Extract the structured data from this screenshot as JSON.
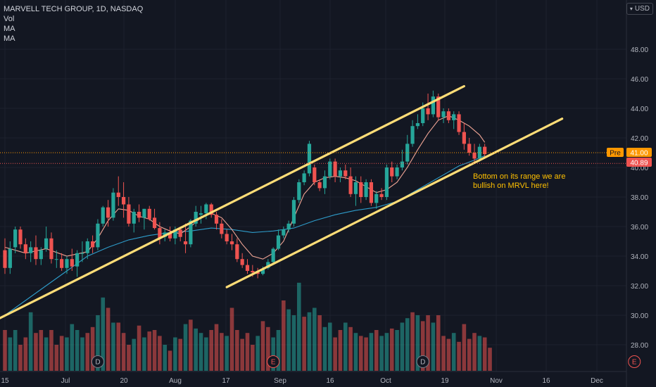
{
  "legend": {
    "symbol": "MARVELL TECH GROUP, 1D, NASDAQ",
    "vol": "Vol",
    "ma1": "MA",
    "ma2": "MA"
  },
  "currency": {
    "label": "USD",
    "icon": "chevron-down-icon"
  },
  "annotation": {
    "text": "Bottom on its range we are bullish on MRVL here!"
  },
  "price_labels": {
    "pre_tag": "Pre",
    "pre_value": "41.00",
    "last_value": "40.89"
  },
  "colors": {
    "background": "#131722",
    "up": "#26a69a",
    "down": "#ef5350",
    "channel": "#ffdd77",
    "ma_fast": "#f0a595",
    "ma_slow": "#2e9cca",
    "annotation": "#ffc000",
    "pre": "#ff9800",
    "last": "#ef5350"
  },
  "chart_data": {
    "type": "candlestick",
    "title": "MARVELL TECH GROUP, 1D, NASDAQ",
    "ylim": [
      26.0,
      52.0
    ],
    "y_ticks": [
      "28.00",
      "30.00",
      "32.00",
      "34.00",
      "36.00",
      "38.00",
      "40.00",
      "42.00",
      "44.00",
      "46.00",
      "48.00"
    ],
    "x_ticks": [
      "15",
      "Jul",
      "20",
      "Aug",
      "17",
      "Sep",
      "16",
      "Oct",
      "19",
      "Nov",
      "16",
      "Dec"
    ],
    "grid": true,
    "candles": [
      {
        "o": 34.4,
        "h": 35.2,
        "l": 32.8,
        "c": 33.2
      },
      {
        "o": 33.2,
        "h": 35.0,
        "l": 32.8,
        "c": 34.5
      },
      {
        "o": 34.6,
        "h": 36.0,
        "l": 34.2,
        "c": 35.8
      },
      {
        "o": 35.8,
        "h": 36.0,
        "l": 34.5,
        "c": 34.8
      },
      {
        "o": 34.8,
        "h": 35.2,
        "l": 33.8,
        "c": 34.2
      },
      {
        "o": 34.2,
        "h": 35.0,
        "l": 33.6,
        "c": 34.6
      },
      {
        "o": 34.6,
        "h": 35.4,
        "l": 33.4,
        "c": 33.8
      },
      {
        "o": 33.8,
        "h": 34.6,
        "l": 33.4,
        "c": 34.4
      },
      {
        "o": 34.5,
        "h": 36.0,
        "l": 34.3,
        "c": 35.2
      },
      {
        "o": 35.2,
        "h": 35.6,
        "l": 33.5,
        "c": 33.8
      },
      {
        "o": 33.8,
        "h": 34.4,
        "l": 33.2,
        "c": 33.8
      },
      {
        "o": 33.8,
        "h": 34.2,
        "l": 33.0,
        "c": 33.2
      },
      {
        "o": 33.2,
        "h": 34.0,
        "l": 32.8,
        "c": 33.8
      },
      {
        "o": 33.8,
        "h": 34.5,
        "l": 33.0,
        "c": 33.3
      },
      {
        "o": 33.3,
        "h": 34.4,
        "l": 32.6,
        "c": 34.2
      },
      {
        "o": 34.2,
        "h": 35.0,
        "l": 33.6,
        "c": 34.2
      },
      {
        "o": 34.2,
        "h": 35.2,
        "l": 33.8,
        "c": 35.0
      },
      {
        "o": 35.0,
        "h": 35.4,
        "l": 34.2,
        "c": 34.6
      },
      {
        "o": 34.6,
        "h": 36.5,
        "l": 34.4,
        "c": 36.2
      },
      {
        "o": 36.2,
        "h": 37.4,
        "l": 36.0,
        "c": 37.3
      },
      {
        "o": 37.3,
        "h": 37.8,
        "l": 36.0,
        "c": 36.6
      },
      {
        "o": 36.6,
        "h": 38.6,
        "l": 36.4,
        "c": 38.3
      },
      {
        "o": 38.3,
        "h": 39.4,
        "l": 37.4,
        "c": 38.0
      },
      {
        "o": 38.0,
        "h": 39.0,
        "l": 36.6,
        "c": 37.5
      },
      {
        "o": 37.5,
        "h": 38.0,
        "l": 36.0,
        "c": 36.2
      },
      {
        "o": 36.2,
        "h": 37.2,
        "l": 35.6,
        "c": 37.0
      },
      {
        "o": 37.0,
        "h": 37.5,
        "l": 36.3,
        "c": 36.6
      },
      {
        "o": 36.6,
        "h": 37.2,
        "l": 35.8,
        "c": 37.2
      },
      {
        "o": 37.2,
        "h": 37.4,
        "l": 36.4,
        "c": 36.5
      },
      {
        "o": 36.6,
        "h": 37.2,
        "l": 35.8,
        "c": 35.9
      },
      {
        "o": 35.9,
        "h": 36.3,
        "l": 34.8,
        "c": 35.2
      },
      {
        "o": 35.3,
        "h": 35.8,
        "l": 35.0,
        "c": 35.6
      },
      {
        "o": 35.6,
        "h": 36.0,
        "l": 35.0,
        "c": 35.2
      },
      {
        "o": 35.2,
        "h": 36.0,
        "l": 34.8,
        "c": 35.8
      },
      {
        "o": 35.8,
        "h": 36.0,
        "l": 35.0,
        "c": 35.3
      },
      {
        "o": 35.0,
        "h": 36.2,
        "l": 34.2,
        "c": 34.8
      },
      {
        "o": 34.8,
        "h": 36.5,
        "l": 34.6,
        "c": 36.4
      },
      {
        "o": 36.2,
        "h": 37.4,
        "l": 36.0,
        "c": 37.0
      },
      {
        "o": 36.8,
        "h": 37.4,
        "l": 36.2,
        "c": 36.9
      },
      {
        "o": 36.9,
        "h": 37.6,
        "l": 36.5,
        "c": 37.5
      },
      {
        "o": 37.5,
        "h": 37.6,
        "l": 36.6,
        "c": 36.8
      },
      {
        "o": 36.8,
        "h": 37.0,
        "l": 35.8,
        "c": 36.2
      },
      {
        "o": 36.2,
        "h": 36.5,
        "l": 35.2,
        "c": 35.5
      },
      {
        "o": 35.5,
        "h": 35.8,
        "l": 34.8,
        "c": 35.0
      },
      {
        "o": 35.0,
        "h": 35.5,
        "l": 34.4,
        "c": 34.8
      },
      {
        "o": 34.8,
        "h": 35.2,
        "l": 33.6,
        "c": 33.8
      },
      {
        "o": 33.8,
        "h": 34.2,
        "l": 33.2,
        "c": 33.4
      },
      {
        "o": 33.4,
        "h": 33.8,
        "l": 32.8,
        "c": 33.0
      },
      {
        "o": 33.0,
        "h": 33.4,
        "l": 32.6,
        "c": 32.9
      },
      {
        "o": 32.9,
        "h": 33.2,
        "l": 32.5,
        "c": 32.8
      },
      {
        "o": 32.8,
        "h": 33.3,
        "l": 32.7,
        "c": 33.1
      },
      {
        "o": 33.2,
        "h": 33.8,
        "l": 33.1,
        "c": 33.6
      },
      {
        "o": 33.6,
        "h": 34.6,
        "l": 33.5,
        "c": 34.5
      },
      {
        "o": 34.5,
        "h": 35.8,
        "l": 34.4,
        "c": 35.4
      },
      {
        "o": 35.4,
        "h": 36.0,
        "l": 35.2,
        "c": 35.8
      },
      {
        "o": 35.8,
        "h": 36.4,
        "l": 35.6,
        "c": 36.2
      },
      {
        "o": 36.2,
        "h": 38.0,
        "l": 36.0,
        "c": 37.8
      },
      {
        "o": 37.8,
        "h": 39.2,
        "l": 37.6,
        "c": 39.0
      },
      {
        "o": 39.0,
        "h": 39.8,
        "l": 38.8,
        "c": 39.6
      },
      {
        "o": 39.6,
        "h": 41.8,
        "l": 39.4,
        "c": 41.6
      },
      {
        "o": 40.0,
        "h": 40.2,
        "l": 38.8,
        "c": 39.0
      },
      {
        "o": 39.0,
        "h": 39.2,
        "l": 38.4,
        "c": 38.6
      },
      {
        "o": 38.6,
        "h": 39.8,
        "l": 38.2,
        "c": 39.4
      },
      {
        "o": 39.4,
        "h": 40.6,
        "l": 39.2,
        "c": 40.4
      },
      {
        "o": 40.4,
        "h": 40.6,
        "l": 39.0,
        "c": 39.4
      },
      {
        "o": 39.4,
        "h": 40.0,
        "l": 39.0,
        "c": 39.8
      },
      {
        "o": 39.8,
        "h": 40.2,
        "l": 39.2,
        "c": 39.4
      },
      {
        "o": 39.4,
        "h": 40.0,
        "l": 38.0,
        "c": 38.2
      },
      {
        "o": 38.2,
        "h": 39.4,
        "l": 37.4,
        "c": 39.0
      },
      {
        "o": 39.0,
        "h": 39.4,
        "l": 37.6,
        "c": 38.0
      },
      {
        "o": 38.0,
        "h": 39.2,
        "l": 37.8,
        "c": 39.0
      },
      {
        "o": 39.0,
        "h": 39.2,
        "l": 37.4,
        "c": 37.6
      },
      {
        "o": 37.6,
        "h": 38.4,
        "l": 37.2,
        "c": 38.2
      },
      {
        "o": 38.2,
        "h": 38.6,
        "l": 37.8,
        "c": 38.0
      },
      {
        "o": 38.0,
        "h": 40.2,
        "l": 37.8,
        "c": 40.0
      },
      {
        "o": 40.0,
        "h": 40.4,
        "l": 39.0,
        "c": 39.4
      },
      {
        "o": 39.4,
        "h": 40.2,
        "l": 39.2,
        "c": 40.0
      },
      {
        "o": 40.0,
        "h": 41.2,
        "l": 39.8,
        "c": 40.4
      },
      {
        "o": 40.4,
        "h": 42.2,
        "l": 40.2,
        "c": 41.6
      },
      {
        "o": 41.6,
        "h": 43.2,
        "l": 41.4,
        "c": 42.8
      },
      {
        "o": 42.8,
        "h": 43.6,
        "l": 42.6,
        "c": 43.0
      },
      {
        "o": 43.0,
        "h": 44.4,
        "l": 42.8,
        "c": 44.0
      },
      {
        "o": 44.0,
        "h": 45.0,
        "l": 43.2,
        "c": 43.6
      },
      {
        "o": 43.6,
        "h": 45.2,
        "l": 43.4,
        "c": 44.8
      },
      {
        "o": 44.8,
        "h": 45.0,
        "l": 43.2,
        "c": 43.4
      },
      {
        "o": 43.4,
        "h": 44.0,
        "l": 43.0,
        "c": 43.8
      },
      {
        "o": 43.8,
        "h": 44.0,
        "l": 43.0,
        "c": 43.2
      },
      {
        "o": 43.2,
        "h": 43.8,
        "l": 42.6,
        "c": 43.6
      },
      {
        "o": 43.6,
        "h": 43.8,
        "l": 42.2,
        "c": 42.4
      },
      {
        "o": 42.4,
        "h": 43.0,
        "l": 41.2,
        "c": 41.6
      },
      {
        "o": 41.6,
        "h": 42.0,
        "l": 40.8,
        "c": 41.0
      },
      {
        "o": 41.0,
        "h": 41.6,
        "l": 40.4,
        "c": 40.6
      },
      {
        "o": 40.6,
        "h": 41.6,
        "l": 40.4,
        "c": 41.4
      },
      {
        "o": 41.4,
        "h": 41.6,
        "l": 40.6,
        "c": 40.9
      }
    ],
    "volume": [
      {
        "v": 29.0,
        "up": false
      },
      {
        "v": 28.5,
        "up": true
      },
      {
        "v": 29.0,
        "up": true
      },
      {
        "v": 28.0,
        "up": false
      },
      {
        "v": 28.5,
        "up": false
      },
      {
        "v": 30.2,
        "up": true
      },
      {
        "v": 28.8,
        "up": false
      },
      {
        "v": 29.0,
        "up": false
      },
      {
        "v": 28.5,
        "up": true
      },
      {
        "v": 29.0,
        "up": false
      },
      {
        "v": 28.0,
        "up": false
      },
      {
        "v": 28.6,
        "up": false
      },
      {
        "v": 28.5,
        "up": true
      },
      {
        "v": 29.4,
        "up": true
      },
      {
        "v": 29.0,
        "up": true
      },
      {
        "v": 28.5,
        "up": true
      },
      {
        "v": 28.8,
        "up": false
      },
      {
        "v": 29.2,
        "up": false
      },
      {
        "v": 30.0,
        "up": true
      },
      {
        "v": 31.2,
        "up": true
      },
      {
        "v": 30.5,
        "up": false
      },
      {
        "v": 29.5,
        "up": true
      },
      {
        "v": 29.5,
        "up": false
      },
      {
        "v": 28.8,
        "up": false
      },
      {
        "v": 28.0,
        "up": false
      },
      {
        "v": 28.4,
        "up": true
      },
      {
        "v": 29.3,
        "up": false
      },
      {
        "v": 28.5,
        "up": true
      },
      {
        "v": 28.9,
        "up": false
      },
      {
        "v": 29.0,
        "up": false
      },
      {
        "v": 28.6,
        "up": false
      },
      {
        "v": 28.0,
        "up": true
      },
      {
        "v": 27.6,
        "up": false
      },
      {
        "v": 28.5,
        "up": true
      },
      {
        "v": 28.4,
        "up": false
      },
      {
        "v": 29.4,
        "up": true
      },
      {
        "v": 29.7,
        "up": false
      },
      {
        "v": 29.1,
        "up": true
      },
      {
        "v": 28.8,
        "up": true
      },
      {
        "v": 28.5,
        "up": true
      },
      {
        "v": 29.0,
        "up": false
      },
      {
        "v": 29.4,
        "up": false
      },
      {
        "v": 28.8,
        "up": false
      },
      {
        "v": 28.6,
        "up": true
      },
      {
        "v": 30.5,
        "up": false
      },
      {
        "v": 29.0,
        "up": false
      },
      {
        "v": 28.4,
        "up": false
      },
      {
        "v": 28.8,
        "up": false
      },
      {
        "v": 28.0,
        "up": false
      },
      {
        "v": 28.6,
        "up": true
      },
      {
        "v": 29.6,
        "up": false
      },
      {
        "v": 29.2,
        "up": false
      },
      {
        "v": 28.5,
        "up": true
      },
      {
        "v": 29.0,
        "up": true
      },
      {
        "v": 31.0,
        "up": false
      },
      {
        "v": 30.4,
        "up": true
      },
      {
        "v": 30.0,
        "up": true
      },
      {
        "v": 32.2,
        "up": true
      },
      {
        "v": 29.9,
        "up": false
      },
      {
        "v": 30.2,
        "up": true
      },
      {
        "v": 30.5,
        "up": true
      },
      {
        "v": 30.0,
        "up": false
      },
      {
        "v": 29.2,
        "up": true
      },
      {
        "v": 29.5,
        "up": true
      },
      {
        "v": 28.5,
        "up": false
      },
      {
        "v": 29.0,
        "up": false
      },
      {
        "v": 29.5,
        "up": true
      },
      {
        "v": 29.2,
        "up": false
      },
      {
        "v": 28.8,
        "up": true
      },
      {
        "v": 28.6,
        "up": false
      },
      {
        "v": 28.5,
        "up": false
      },
      {
        "v": 28.8,
        "up": true
      },
      {
        "v": 29.0,
        "up": false
      },
      {
        "v": 28.6,
        "up": true
      },
      {
        "v": 28.8,
        "up": true
      },
      {
        "v": 29.1,
        "up": false
      },
      {
        "v": 29.0,
        "up": true
      },
      {
        "v": 29.5,
        "up": true
      },
      {
        "v": 29.8,
        "up": true
      },
      {
        "v": 30.2,
        "up": false
      },
      {
        "v": 30.0,
        "up": true
      },
      {
        "v": 29.6,
        "up": false
      },
      {
        "v": 30.0,
        "up": false
      },
      {
        "v": 29.5,
        "up": true
      },
      {
        "v": 30.0,
        "up": false
      },
      {
        "v": 28.6,
        "up": false
      },
      {
        "v": 28.4,
        "up": false
      },
      {
        "v": 28.8,
        "up": true
      },
      {
        "v": 28.2,
        "up": false
      },
      {
        "v": 29.4,
        "up": false
      },
      {
        "v": 28.4,
        "up": false
      },
      {
        "v": 28.8,
        "up": false
      },
      {
        "v": 28.6,
        "up": true
      },
      {
        "v": 28.5,
        "up": false
      },
      {
        "v": 27.8,
        "up": false
      }
    ],
    "ma_fast": [
      [
        0,
        34.6
      ],
      [
        4,
        34.2
      ],
      [
        8,
        34.5
      ],
      [
        12,
        34.0
      ],
      [
        16,
        34.3
      ],
      [
        18,
        35.2
      ],
      [
        20,
        36.4
      ],
      [
        22,
        37.2
      ],
      [
        24,
        37.1
      ],
      [
        26,
        36.7
      ],
      [
        28,
        36.5
      ],
      [
        30,
        36.0
      ],
      [
        32,
        35.7
      ],
      [
        34,
        35.5
      ],
      [
        36,
        36.0
      ],
      [
        38,
        36.6
      ],
      [
        40,
        36.9
      ],
      [
        42,
        36.6
      ],
      [
        44,
        35.8
      ],
      [
        46,
        34.8
      ],
      [
        48,
        34.0
      ],
      [
        50,
        33.8
      ],
      [
        52,
        34.2
      ],
      [
        54,
        35.0
      ],
      [
        56,
        36.6
      ],
      [
        58,
        38.2
      ],
      [
        60,
        39.0
      ],
      [
        62,
        39.3
      ],
      [
        64,
        39.4
      ],
      [
        66,
        39.3
      ],
      [
        68,
        39.1
      ],
      [
        70,
        38.7
      ],
      [
        72,
        38.3
      ],
      [
        74,
        38.5
      ],
      [
        76,
        39.0
      ],
      [
        78,
        40.0
      ],
      [
        80,
        41.2
      ],
      [
        82,
        42.3
      ],
      [
        84,
        43.2
      ],
      [
        86,
        43.5
      ],
      [
        88,
        43.2
      ],
      [
        90,
        42.8
      ],
      [
        92,
        42.2
      ],
      [
        93,
        41.7
      ]
    ],
    "ma_slow": [
      [
        0,
        30.0
      ],
      [
        4,
        31.0
      ],
      [
        8,
        32.0
      ],
      [
        12,
        33.0
      ],
      [
        16,
        34.0
      ],
      [
        20,
        34.6
      ],
      [
        24,
        35.1
      ],
      [
        28,
        35.4
      ],
      [
        32,
        35.6
      ],
      [
        36,
        35.7
      ],
      [
        40,
        35.9
      ],
      [
        44,
        35.8
      ],
      [
        48,
        35.6
      ],
      [
        52,
        35.7
      ],
      [
        56,
        35.9
      ],
      [
        60,
        36.4
      ],
      [
        64,
        36.8
      ],
      [
        68,
        37.1
      ],
      [
        72,
        37.3
      ],
      [
        76,
        37.7
      ],
      [
        80,
        38.5
      ],
      [
        84,
        39.3
      ],
      [
        88,
        40.1
      ],
      [
        91,
        40.5
      ],
      [
        93,
        40.8
      ]
    ],
    "channel_upper": [
      [
        -1,
        29.8
      ],
      [
        89,
        45.5
      ]
    ],
    "channel_lower": [
      [
        43,
        31.9
      ],
      [
        108,
        43.3
      ]
    ],
    "events": [
      {
        "label": "D",
        "index": 18
      },
      {
        "label": "E",
        "index": 52
      },
      {
        "label": "D",
        "index": 81
      },
      {
        "label": "E",
        "index": 122
      }
    ]
  }
}
